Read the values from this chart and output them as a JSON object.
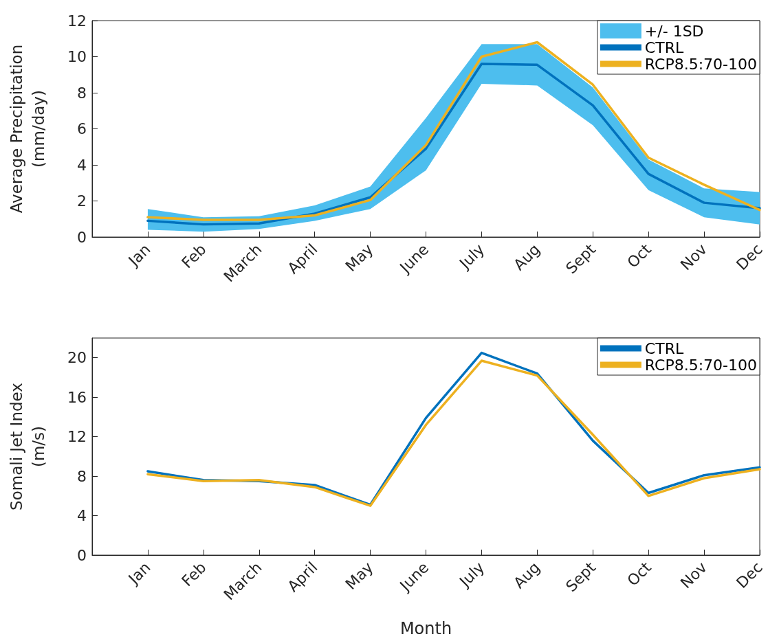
{
  "chart_data": [
    {
      "type": "line",
      "ylabel": "Average Precipitation\n(mm/day)",
      "categories": [
        null,
        "Jan",
        "Feb",
        "March",
        "April",
        "May",
        "June",
        "July",
        "Aug",
        "Sept",
        "Oct",
        "Nov",
        "Dec"
      ],
      "ylim": [
        0,
        12
      ],
      "yticks": [
        0,
        2,
        4,
        6,
        8,
        10,
        12
      ],
      "legend": "top right",
      "grid": false,
      "marker": "none",
      "line_style": "solid",
      "series": [
        {
          "name": "+/- 1SD",
          "type": "area",
          "color": "#4dbeee",
          "values": [
            null,
            null,
            null,
            null,
            null,
            null,
            null,
            null,
            null,
            null,
            null,
            null,
            null
          ],
          "lower": [
            null,
            0.4,
            0.3,
            0.45,
            0.9,
            1.55,
            3.7,
            8.5,
            8.4,
            6.2,
            2.6,
            1.1,
            0.7
          ],
          "upper": [
            null,
            1.55,
            1.1,
            1.15,
            1.75,
            2.8,
            6.6,
            10.7,
            10.7,
            8.3,
            4.3,
            2.7,
            2.5
          ]
        },
        {
          "name": "CTRL",
          "color": "#0072bd",
          "values": [
            null,
            0.9,
            0.7,
            0.75,
            1.3,
            2.2,
            4.9,
            9.6,
            9.55,
            7.3,
            3.5,
            1.9,
            1.6
          ]
        },
        {
          "name": "RCP8.5:70-100",
          "color": "#edb120",
          "values": [
            null,
            1.1,
            0.95,
            0.95,
            1.2,
            2.05,
            5.1,
            10.0,
            10.8,
            8.45,
            4.4,
            2.9,
            1.5
          ]
        }
      ]
    },
    {
      "type": "line",
      "ylabel": "Somali Jet Index\n(m/s)",
      "xlabel": "Month",
      "categories": [
        null,
        "Jan",
        "Feb",
        "March",
        "April",
        "May",
        "June",
        "July",
        "Aug",
        "Sept",
        "Oct",
        "Nov",
        "Dec"
      ],
      "ylim": [
        0,
        22
      ],
      "yticks": [
        0,
        4,
        8,
        12,
        16,
        20
      ],
      "legend": "top right",
      "grid": false,
      "marker": "none",
      "line_style": "solid",
      "series": [
        {
          "name": "CTRL",
          "color": "#0072bd",
          "values": [
            null,
            8.5,
            7.6,
            7.5,
            7.1,
            5.1,
            13.9,
            20.5,
            18.4,
            11.6,
            6.3,
            8.1,
            8.9
          ]
        },
        {
          "name": "RCP8.5:70-100",
          "color": "#edb120",
          "values": [
            null,
            8.2,
            7.5,
            7.6,
            6.9,
            5.0,
            13.2,
            19.7,
            18.2,
            12.2,
            6.0,
            7.8,
            8.7
          ]
        }
      ]
    }
  ]
}
